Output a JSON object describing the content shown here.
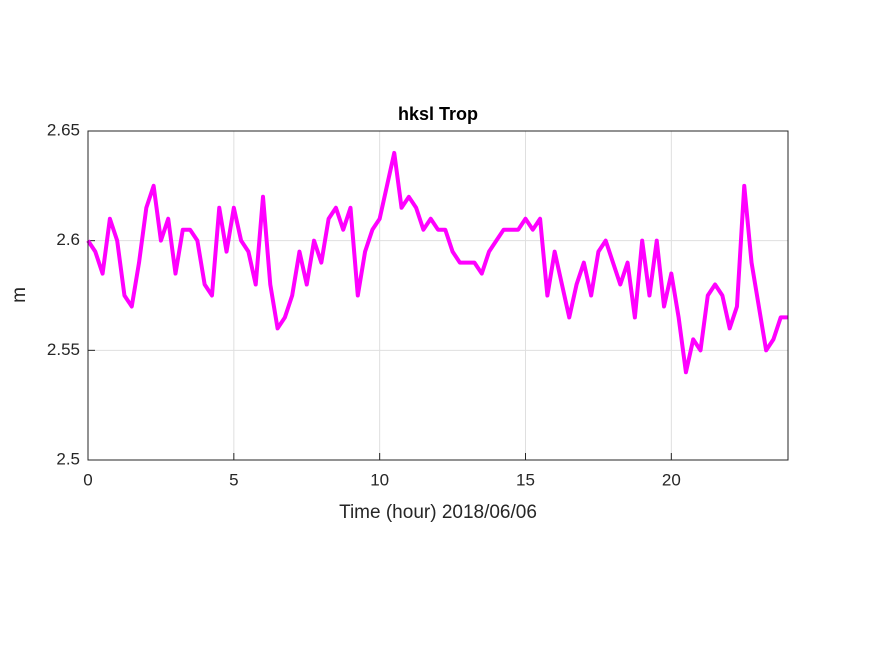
{
  "chart_data": {
    "type": "line",
    "title": "hksl Trop",
    "xlabel": "Time (hour)  2018/06/06",
    "ylabel": "m",
    "xlim": [
      0,
      24
    ],
    "xticks": [
      0,
      5,
      10,
      15,
      20
    ],
    "ylim": [
      2.5,
      2.65
    ],
    "yticks": [
      2.5,
      2.55,
      2.6,
      2.65
    ],
    "grid": true,
    "x": [
      0,
      0.25,
      0.5,
      0.75,
      1,
      1.25,
      1.5,
      1.75,
      2,
      2.25,
      2.5,
      2.75,
      3,
      3.25,
      3.5,
      3.75,
      4,
      4.25,
      4.5,
      4.75,
      5,
      5.25,
      5.5,
      5.75,
      6,
      6.25,
      6.5,
      6.75,
      7,
      7.25,
      7.5,
      7.75,
      8,
      8.25,
      8.5,
      8.75,
      9,
      9.25,
      9.5,
      9.75,
      10,
      10.25,
      10.5,
      10.75,
      11,
      11.25,
      11.5,
      11.75,
      12,
      12.25,
      12.5,
      12.75,
      13,
      13.25,
      13.5,
      13.75,
      14,
      14.25,
      14.5,
      14.75,
      15,
      15.25,
      15.5,
      15.75,
      16,
      16.25,
      16.5,
      16.75,
      17,
      17.25,
      17.5,
      17.75,
      18,
      18.25,
      18.5,
      18.75,
      19,
      19.25,
      19.5,
      19.75,
      20,
      20.25,
      20.5,
      20.75,
      21,
      21.25,
      21.5,
      21.75,
      22,
      22.25,
      22.5,
      22.75,
      23,
      23.25,
      23.5,
      23.75,
      24
    ],
    "series": [
      {
        "name": "hksl",
        "color": "#ff00ff",
        "values": [
          2.6,
          2.595,
          2.585,
          2.61,
          2.6,
          2.575,
          2.57,
          2.59,
          2.615,
          2.625,
          2.6,
          2.61,
          2.585,
          2.605,
          2.605,
          2.6,
          2.58,
          2.575,
          2.615,
          2.595,
          2.615,
          2.6,
          2.595,
          2.58,
          2.62,
          2.58,
          2.56,
          2.565,
          2.575,
          2.595,
          2.58,
          2.6,
          2.59,
          2.61,
          2.615,
          2.605,
          2.615,
          2.575,
          2.595,
          2.605,
          2.61,
          2.625,
          2.64,
          2.615,
          2.62,
          2.615,
          2.605,
          2.61,
          2.605,
          2.605,
          2.595,
          2.59,
          2.59,
          2.59,
          2.585,
          2.595,
          2.6,
          2.605,
          2.605,
          2.605,
          2.61,
          2.605,
          2.61,
          2.575,
          2.595,
          2.58,
          2.565,
          2.58,
          2.59,
          2.575,
          2.595,
          2.6,
          2.59,
          2.58,
          2.59,
          2.565,
          2.6,
          2.575,
          2.6,
          2.57,
          2.585,
          2.565,
          2.54,
          2.555,
          2.55,
          2.575,
          2.58,
          2.575,
          2.56,
          2.57,
          2.625,
          2.59,
          2.57,
          2.55,
          2.555,
          2.565,
          2.565
        ]
      }
    ]
  }
}
